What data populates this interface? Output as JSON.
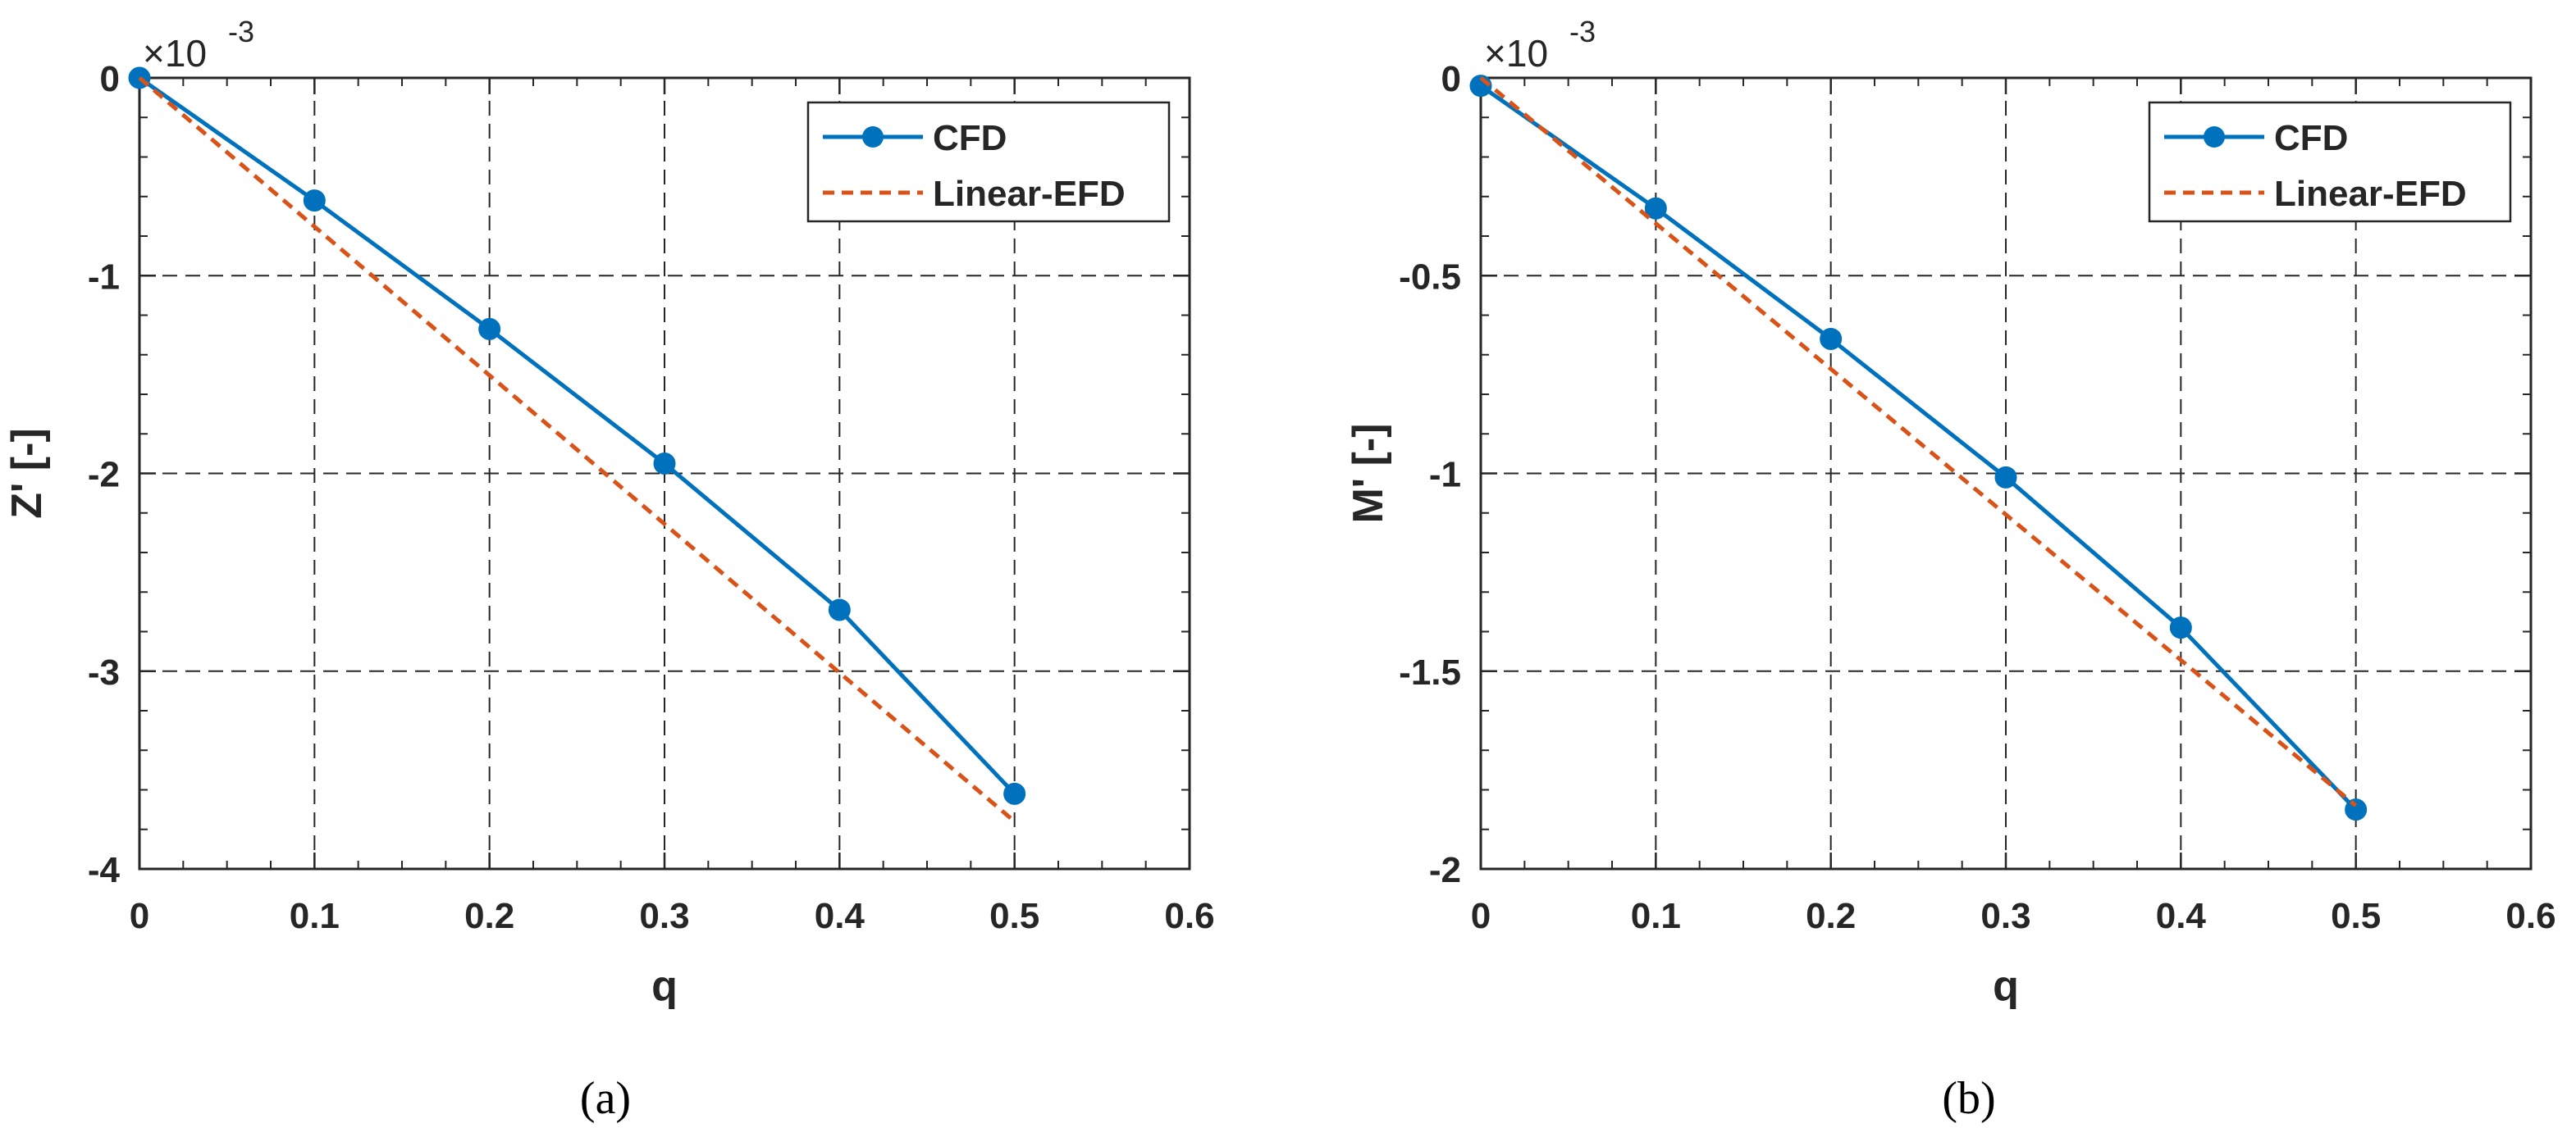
{
  "chart_data": [
    {
      "type": "line",
      "panel_label": "a",
      "caption": "(a)",
      "xlabel": "q",
      "ylabel": "Z' [-]",
      "exponent_label": "×10",
      "exponent_power": "-3",
      "xlim": [
        0,
        0.6
      ],
      "ylim": [
        -4,
        0
      ],
      "xticks": [
        0,
        0.1,
        0.2,
        0.3,
        0.4,
        0.5,
        0.6
      ],
      "xtick_labels": [
        "0",
        "0.1",
        "0.2",
        "0.3",
        "0.4",
        "0.5",
        "0.6"
      ],
      "yticks": [
        0,
        -1,
        -2,
        -3,
        -4
      ],
      "ytick_labels": [
        "0",
        "-1",
        "-2",
        "-3",
        "-4"
      ],
      "grid": true,
      "legend_position": "top-right",
      "series": [
        {
          "name": "CFD",
          "style": "solid-marker",
          "color": "#0072BD",
          "x": [
            0,
            0.1,
            0.2,
            0.3,
            0.4,
            0.5
          ],
          "y": [
            0,
            -0.62,
            -1.27,
            -1.95,
            -2.69,
            -3.62
          ]
        },
        {
          "name": "Linear-EFD",
          "style": "dashed",
          "color": "#D95319",
          "x": [
            0,
            0.5
          ],
          "y": [
            0,
            -3.76
          ]
        }
      ]
    },
    {
      "type": "line",
      "panel_label": "b",
      "caption": "(b)",
      "xlabel": "q",
      "ylabel": "M' [-]",
      "exponent_label": "×10",
      "exponent_power": "-3",
      "xlim": [
        0,
        0.6
      ],
      "ylim": [
        -2,
        0
      ],
      "xticks": [
        0,
        0.1,
        0.2,
        0.3,
        0.4,
        0.5,
        0.6
      ],
      "xtick_labels": [
        "0",
        "0.1",
        "0.2",
        "0.3",
        "0.4",
        "0.5",
        "0.6"
      ],
      "yticks": [
        0,
        -0.5,
        -1,
        -1.5,
        -2
      ],
      "ytick_labels": [
        "0",
        "-0.5",
        "-1",
        "-1.5",
        "-2"
      ],
      "grid": true,
      "legend_position": "top-right",
      "series": [
        {
          "name": "CFD",
          "style": "solid-marker",
          "color": "#0072BD",
          "x": [
            0,
            0.1,
            0.2,
            0.3,
            0.4,
            0.5
          ],
          "y": [
            -0.02,
            -0.33,
            -0.66,
            -1.01,
            -1.39,
            -1.85
          ]
        },
        {
          "name": "Linear-EFD",
          "style": "dashed",
          "color": "#D95319",
          "x": [
            0,
            0.5
          ],
          "y": [
            0,
            -1.84
          ]
        }
      ]
    }
  ]
}
